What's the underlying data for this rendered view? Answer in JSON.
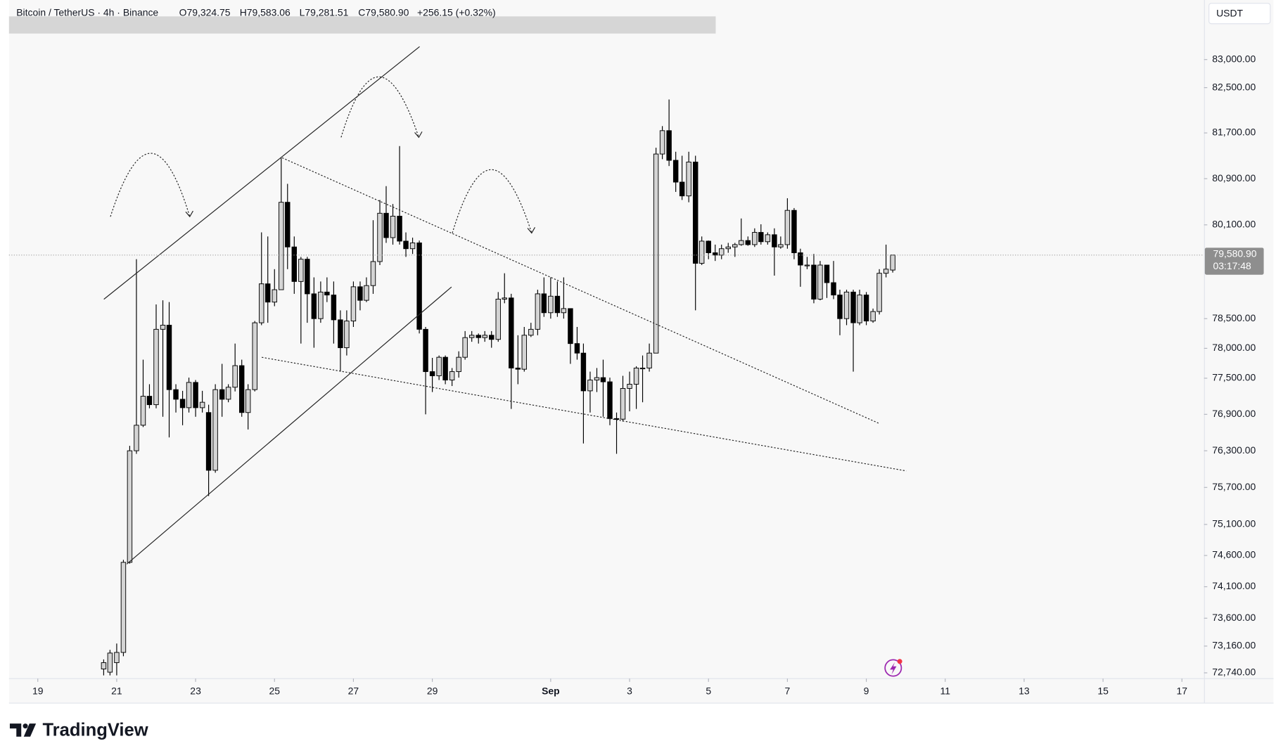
{
  "chart_data": {
    "type": "candlestick",
    "symbol": "Bitcoin / TetherUS · 4h · Binance",
    "ohlc_labels": [
      "O79,324.75",
      "H79,583.06",
      "L79,281.51",
      "C79,580.90"
    ],
    "change": "+256.15 (+0.32%)",
    "currency": "USDT",
    "brand": "TradingView",
    "countdown": "03:17:48",
    "last_price": {
      "value": 79580.9,
      "label": "79,580.90"
    },
    "up_color": "#d4d4d4",
    "down_color": "#000000",
    "border_color": "#000000",
    "log": true,
    "xlim": [
      18.27,
      48.56
    ],
    "xticks": [
      19,
      21,
      23,
      25,
      27,
      29,
      {
        "value": 32,
        "label": "Sep"
      },
      {
        "value": 34,
        "label": "3"
      },
      {
        "value": 36,
        "label": "5"
      },
      {
        "value": 38,
        "label": "7"
      },
      {
        "value": 40,
        "label": "9"
      },
      {
        "value": 42,
        "label": "11"
      },
      {
        "value": 44,
        "label": "13"
      },
      {
        "value": 46,
        "label": "15"
      },
      {
        "value": 48,
        "label": "17"
      }
    ],
    "ylim": [
      72650,
      84070
    ],
    "yticks": [
      {
        "value": 83000,
        "label": "83,000.00"
      },
      {
        "value": 82500,
        "label": "82,500.00"
      },
      {
        "value": 81700,
        "label": "81,700.00"
      },
      {
        "value": 80900,
        "label": "80,900.00"
      },
      {
        "value": 80100,
        "label": "80,100.00"
      },
      {
        "value": 78500,
        "label": "78,500.00"
      },
      {
        "value": 78000,
        "label": "78,000.00"
      },
      {
        "value": 77500,
        "label": "77,500.00"
      },
      {
        "value": 76900,
        "label": "76,900.00"
      },
      {
        "value": 76300,
        "label": "76,300.00"
      },
      {
        "value": 75700,
        "label": "75,700.00"
      },
      {
        "value": 75100,
        "label": "75,100.00"
      },
      {
        "value": 74600,
        "label": "74,600.00"
      },
      {
        "value": 74100,
        "label": "74,100.00"
      },
      {
        "value": 73600,
        "label": "73,600.00"
      },
      {
        "value": 73160,
        "label": "73,160.00"
      },
      {
        "value": 72740,
        "label": "72,740.00"
      }
    ],
    "x": [
      20.67,
      20.83,
      21,
      21.17,
      21.33,
      21.5,
      21.67,
      21.83,
      22,
      22.17,
      22.33,
      22.5,
      22.67,
      22.83,
      23,
      23.17,
      23.33,
      23.5,
      23.67,
      23.83,
      24,
      24.17,
      24.33,
      24.5,
      24.67,
      24.83,
      25,
      25.17,
      25.33,
      25.5,
      25.67,
      25.83,
      26,
      26.17,
      26.33,
      26.5,
      26.67,
      26.83,
      27,
      27.17,
      27.33,
      27.5,
      27.67,
      27.83,
      28,
      28.17,
      28.33,
      28.5,
      28.67,
      28.83,
      29,
      29.17,
      29.33,
      29.5,
      29.67,
      29.83,
      30,
      30.17,
      30.33,
      30.5,
      30.67,
      30.83,
      31,
      31.17,
      31.33,
      31.5,
      31.67,
      31.83,
      32,
      32.17,
      32.33,
      32.5,
      32.67,
      32.83,
      33,
      33.17,
      33.33,
      33.5,
      33.67,
      33.83,
      34,
      34.17,
      34.33,
      34.5,
      34.67,
      34.83,
      35,
      35.17,
      35.33,
      35.5,
      35.67,
      35.83,
      36,
      36.17,
      36.33,
      36.5,
      36.67,
      36.83,
      37,
      37.17,
      37.33,
      37.5,
      37.67,
      37.83,
      38,
      38.17,
      38.33,
      38.5,
      38.67,
      38.83,
      39,
      39.17,
      39.33,
      39.5,
      39.67,
      39.83,
      40,
      40.17,
      40.33,
      40.5,
      40.67
    ],
    "open": [
      72800,
      72750,
      72900,
      73060,
      74490,
      76300,
      76720,
      77200,
      77060,
      78320,
      78390,
      77310,
      77150,
      77010,
      77430,
      77010,
      76930,
      75980,
      77310,
      77150,
      77350,
      77710,
      76930,
      77310,
      78430,
      79090,
      78780,
      78990,
      80490,
      79720,
      79130,
      79510,
      78920,
      78500,
      78950,
      78900,
      78480,
      78010,
      78460,
      79040,
      78810,
      79060,
      79470,
      80300,
      79880,
      80250,
      79820,
      79690,
      79790,
      78320,
      77610,
      77540,
      77850,
      77470,
      77610,
      77850,
      78180,
      78220,
      78180,
      78220,
      78150,
      78830,
      78850,
      77670,
      77650,
      78220,
      78320,
      78920,
      78600,
      78880,
      78600,
      78670,
      78080,
      77920,
      77290,
      77470,
      77510,
      77440,
      76830,
      76820,
      77330,
      77400,
      77670,
      77670,
      77920,
      81330,
      81740,
      81220,
      80840,
      80600,
      81190,
      79440,
      79820,
      79620,
      79580,
      79690,
      79720,
      79760,
      79830,
      79760,
      79970,
      79810,
      79930,
      79720,
      79760,
      80350,
      79620,
      79410,
      79410,
      78830,
      79410,
      79110,
      78900,
      78500,
      78950,
      78430,
      78900,
      78460,
      78620,
      79270,
      79324.75
    ],
    "high": [
      72950,
      73100,
      73200,
      74530,
      76380,
      79510,
      77810,
      77400,
      78740,
      78810,
      78780,
      77400,
      77290,
      77510,
      77470,
      77290,
      77060,
      77400,
      77740,
      77400,
      78080,
      77810,
      77400,
      78460,
      79970,
      79900,
      79340,
      81260,
      80810,
      79900,
      79550,
      79550,
      79200,
      79130,
      79200,
      79130,
      78640,
      78640,
      79130,
      79130,
      79200,
      80180,
      80530,
      80770,
      80460,
      81470,
      79970,
      79880,
      79830,
      78360,
      77840,
      77880,
      77880,
      77670,
      77950,
      78290,
      78290,
      78250,
      78290,
      78290,
      78950,
      79270,
      78920,
      78220,
      78360,
      78430,
      78990,
      79200,
      79200,
      79130,
      79200,
      78670,
      78360,
      78080,
      77610,
      77670,
      77810,
      77510,
      76930,
      77540,
      77610,
      77700,
      77880,
      78080,
      81440,
      81820,
      82290,
      81370,
      81300,
      81370,
      81300,
      79900,
      79830,
      79760,
      79760,
      79790,
      79790,
      80210,
      79900,
      80040,
      80110,
      79970,
      80040,
      79900,
      80560,
      80390,
      79690,
      79550,
      79600,
      79480,
      79410,
      79480,
      78990,
      78990,
      78990,
      78990,
      78950,
      78670,
      79340,
      79760,
      79583.06
    ],
    "low": [
      72700,
      72700,
      72700,
      73000,
      74470,
      76250,
      76690,
      77000,
      77000,
      76860,
      76520,
      76930,
      76720,
      76930,
      76860,
      76930,
      75560,
      75940,
      76860,
      77100,
      77280,
      76860,
      76650,
      77280,
      78390,
      78430,
      78710,
      78990,
      79340,
      78920,
      78080,
      78430,
      78010,
      78430,
      78780,
      78080,
      77610,
      77880,
      78360,
      78640,
      78780,
      78920,
      79410,
      79790,
      79760,
      79760,
      79550,
      79600,
      78250,
      76900,
      77270,
      77470,
      77400,
      77370,
      77510,
      77810,
      78110,
      78080,
      78110,
      78010,
      78110,
      78760,
      76990,
      77400,
      77610,
      78190,
      78220,
      78530,
      78500,
      78530,
      78500,
      77740,
      77810,
      76420,
      76930,
      77270,
      76860,
      76720,
      76250,
      76780,
      76950,
      76990,
      77100,
      77610,
      77920,
      81240,
      81120,
      80670,
      80530,
      80490,
      78640,
      79410,
      79510,
      79480,
      79510,
      79620,
      79550,
      79740,
      79740,
      79720,
      79760,
      79760,
      79230,
      79690,
      79690,
      79510,
      79040,
      79340,
      78760,
      78810,
      78850,
      78830,
      78220,
      78390,
      77610,
      78390,
      78390,
      78430,
      78570,
      79200,
      79281.51
    ],
    "close": [
      72900,
      73050,
      73060,
      74490,
      76300,
      76720,
      77200,
      77060,
      78320,
      78390,
      77310,
      77150,
      77010,
      77430,
      77010,
      77100,
      75980,
      77310,
      77150,
      77350,
      77710,
      76930,
      77310,
      78430,
      79090,
      78780,
      78990,
      80490,
      79720,
      79130,
      79510,
      78920,
      78500,
      78950,
      78900,
      78480,
      78010,
      78460,
      79040,
      78810,
      79060,
      79470,
      80300,
      79880,
      80250,
      79820,
      79690,
      79790,
      78320,
      77610,
      77540,
      77850,
      77470,
      77610,
      77850,
      78180,
      78220,
      78180,
      78220,
      78150,
      78830,
      78850,
      77670,
      77650,
      78220,
      78320,
      78920,
      78600,
      78880,
      78600,
      78670,
      78080,
      77920,
      77290,
      77470,
      77510,
      77440,
      76830,
      76820,
      77330,
      77400,
      77670,
      77670,
      77920,
      81330,
      81740,
      81220,
      80840,
      80600,
      81190,
      79440,
      79820,
      79620,
      79580,
      79690,
      79720,
      79760,
      79830,
      79760,
      79970,
      79810,
      79930,
      79720,
      79760,
      80350,
      79620,
      79410,
      79410,
      78830,
      79410,
      79110,
      78900,
      78500,
      78950,
      78430,
      78900,
      78460,
      78620,
      79270,
      79340,
      79580.9
    ]
  }
}
